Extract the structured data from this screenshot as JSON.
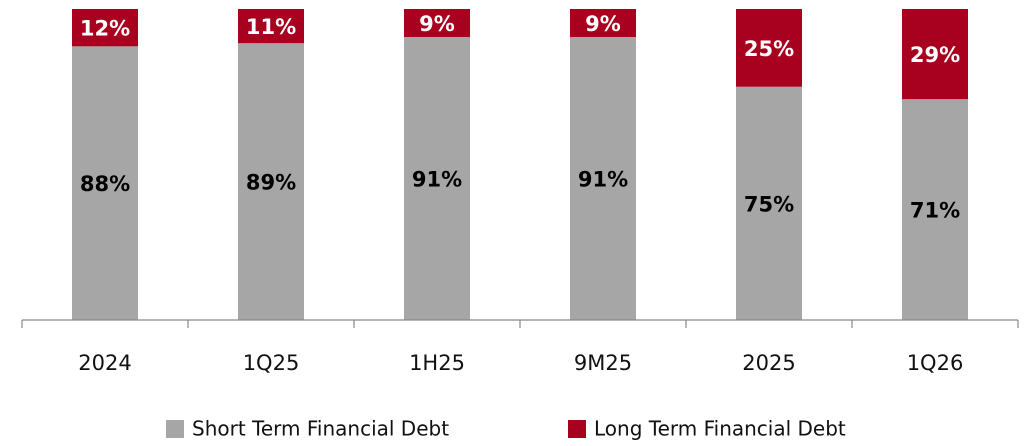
{
  "chart_data": {
    "type": "stacked-bar",
    "categories": [
      "2024",
      "1Q25",
      "1H25",
      "9M25",
      "2025",
      "1Q26"
    ],
    "series": [
      {
        "name": "Short Term Financial Debt",
        "color": "#a6a6a6",
        "values": [
          88,
          89,
          91,
          91,
          75,
          71
        ],
        "value_labels": [
          "88%",
          "89%",
          "91%",
          "91%",
          "75%",
          "71%"
        ],
        "label_color": "#000000"
      },
      {
        "name": "Long Term Financial Debt",
        "color": "#a8001f",
        "values": [
          12,
          11,
          9,
          9,
          25,
          29
        ],
        "value_labels": [
          "12%",
          "11%",
          "9%",
          "9%",
          "25%",
          "29%"
        ],
        "label_color": "#ffffff"
      }
    ],
    "ylim": [
      0,
      100
    ]
  }
}
